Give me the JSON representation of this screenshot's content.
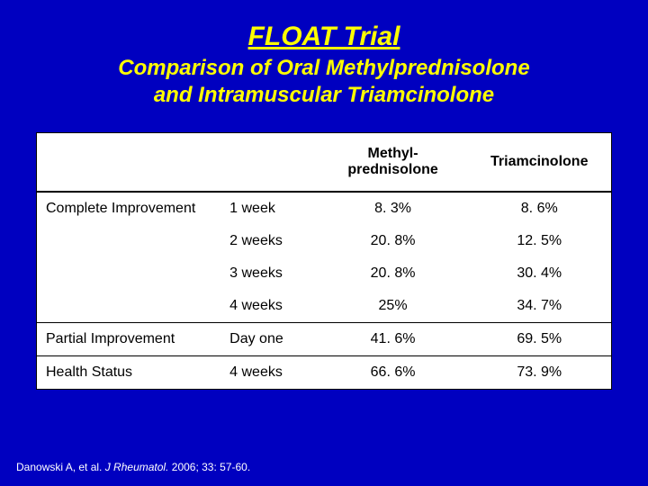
{
  "title": "FLOAT Trial",
  "subtitle_line1": "Comparison of Oral Methylprednisolone",
  "subtitle_line2": "and Intramuscular Triamcinolone",
  "headers": {
    "blank1": "",
    "blank2": "",
    "colA_line1": "Methyl-",
    "colA_line2": "prednisolone",
    "colB": "Triamcinolone"
  },
  "rows": [
    {
      "cat": "Complete Improvement",
      "time": "1 week",
      "a": "8. 3%",
      "b": "8. 6%",
      "sep": false
    },
    {
      "cat": "",
      "time": "2 weeks",
      "a": "20. 8%",
      "b": "12. 5%",
      "sep": false
    },
    {
      "cat": "",
      "time": "3 weeks",
      "a": "20. 8%",
      "b": "30. 4%",
      "sep": false
    },
    {
      "cat": "",
      "time": "4 weeks",
      "a": "25%",
      "b": "34. 7%",
      "sep": false
    },
    {
      "cat": "Partial Improvement",
      "time": "Day one",
      "a": "41. 6%",
      "b": "69. 5%",
      "sep": true
    },
    {
      "cat": "Health Status",
      "time": "4 weeks",
      "a": "66. 6%",
      "b": "73. 9%",
      "sep": true
    }
  ],
  "citation": {
    "authors": "Danowski A, et al. ",
    "journal": "J Rheumatol. ",
    "rest": "2006; 33: 57-60."
  },
  "colors": {
    "background": "#0000c0",
    "title": "#ffff00",
    "table_bg": "#ffffff",
    "text": "#000000",
    "citation": "#ffffff"
  },
  "typography": {
    "title_fontsize": 30,
    "subtitle_fontsize": 24,
    "table_fontsize": 16,
    "citation_fontsize": 12
  }
}
